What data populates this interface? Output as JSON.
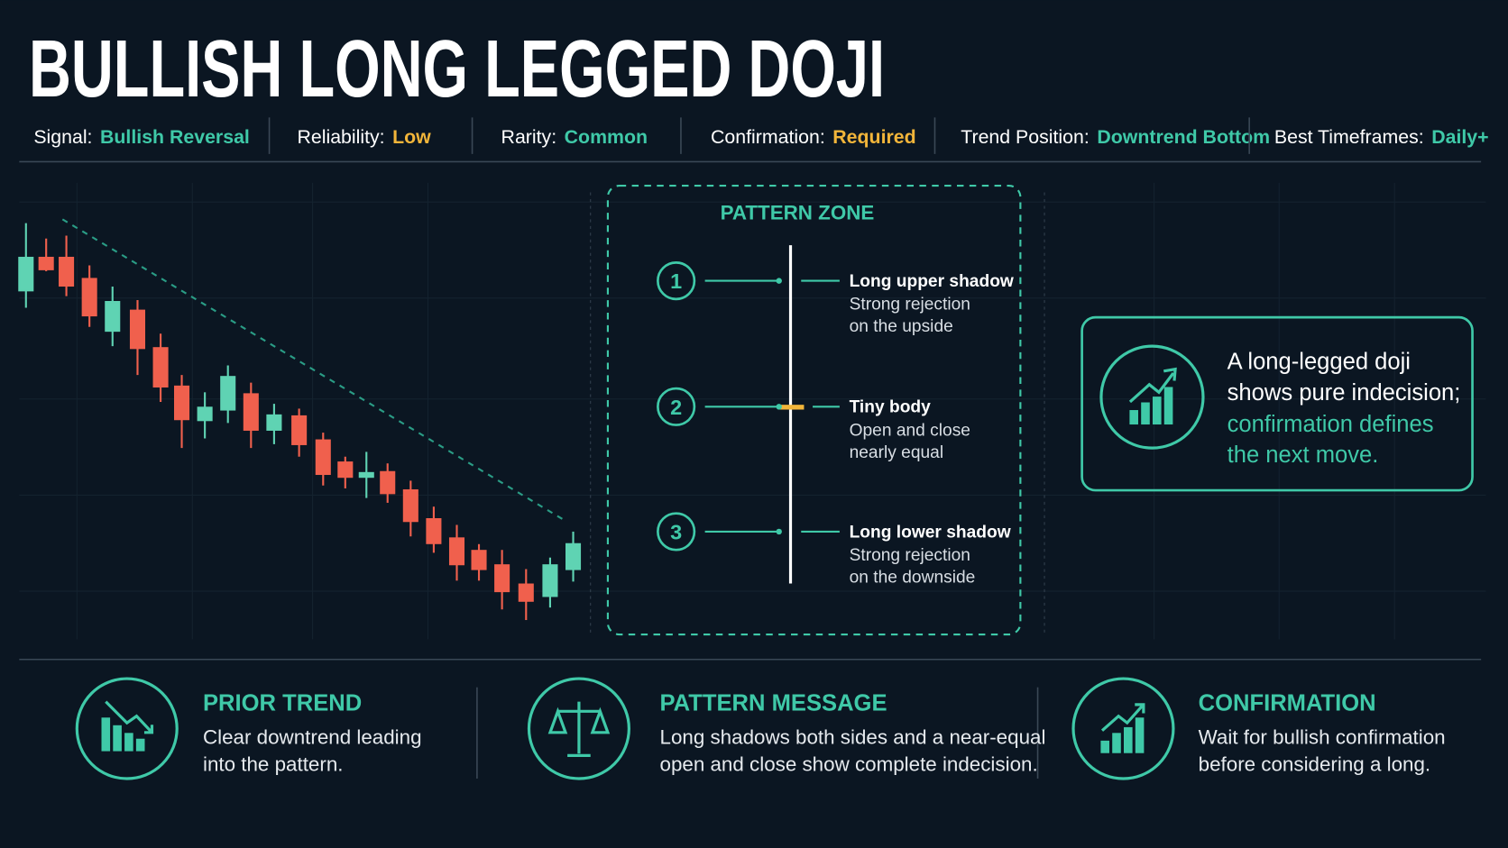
{
  "header": {
    "title": "BULLISH LONG LEGGED DOJI",
    "stats": [
      {
        "label": "Signal:",
        "value": "Bullish Reversal",
        "color": "#3fc9a8"
      },
      {
        "label": "Reliability:",
        "value": "Low",
        "color": "#f2b53a"
      },
      {
        "label": "Rarity:",
        "value": "Common",
        "color": "#3fc9a8"
      },
      {
        "label": "Confirmation:",
        "value": "Required",
        "color": "#f2b53a"
      },
      {
        "label": "Trend Position:",
        "value": "Downtrend Bottom",
        "color": "#3fc9a8"
      },
      {
        "label": "Best Timeframes:",
        "value": "Daily+",
        "color": "#3fc9a8"
      }
    ]
  },
  "pattern_zone": {
    "title": "PATTERN ZONE",
    "items": [
      {
        "number": 1,
        "heading": "Long upper shadow",
        "lines": [
          "Strong rejection",
          "on the upside"
        ]
      },
      {
        "number": 2,
        "heading": "Tiny body",
        "lines": [
          "Open and close",
          "nearly equal"
        ]
      },
      {
        "number": 3,
        "heading": "Long lower shadow",
        "lines": [
          "Strong rejection",
          "on the downside"
        ]
      }
    ]
  },
  "callout": {
    "plain": [
      "A long-legged doji",
      "shows pure indecision;"
    ],
    "highlight": [
      "confirmation defines",
      "the next move."
    ]
  },
  "cards": [
    {
      "title": "PRIOR TREND",
      "lines": [
        "Clear downtrend leading",
        "into the pattern."
      ]
    },
    {
      "title": "PATTERN MESSAGE",
      "lines": [
        "Long shadows both sides and a near-equal",
        "open and close show complete indecision."
      ]
    },
    {
      "title": "CONFIRMATION",
      "lines": [
        "Wait for bullish confirmation",
        "before considering a long."
      ]
    }
  ]
}
